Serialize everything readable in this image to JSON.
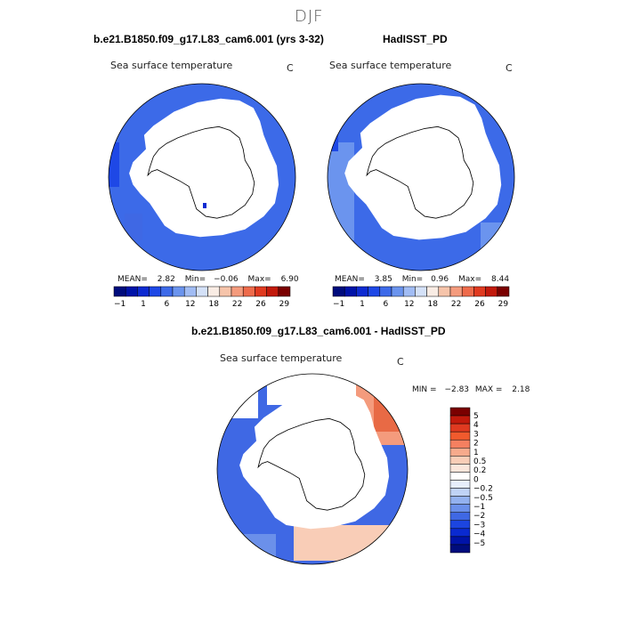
{
  "title": "DJF",
  "panels": [
    {
      "header": "b.e21.B1850.f09_g17.L83_cam6.001 (yrs 3-32)",
      "variable": "Sea surface temperature",
      "units": "C",
      "stats": {
        "mean_label": "MEAN=",
        "mean": "2.82",
        "min_label": "Min=",
        "min": "−0.06",
        "max_label": "Max=",
        "max": "6.90"
      }
    },
    {
      "header": "HadISST_PD",
      "variable": "Sea surface temperature",
      "units": "C",
      "stats": {
        "mean_label": "MEAN=",
        "mean": "3.85",
        "min_label": "Min=",
        "min": "0.96",
        "max_label": "Max=",
        "max": "8.44"
      }
    },
    {
      "header": "b.e21.B1850.f09_g17.L83_cam6.001 - HadISST_PD",
      "variable": "Sea surface temperature",
      "units": "C",
      "stats": {
        "min_label": "MIN =",
        "min": "−2.83",
        "max_label": "MAX =",
        "max": "2.18"
      }
    }
  ],
  "colorbar_abs": {
    "colors": [
      "#000c7d",
      "#0013a8",
      "#0e2bd1",
      "#1e48e6",
      "#3d6ae9",
      "#6b94ee",
      "#a1bcf4",
      "#d4e1f8",
      "#f9ece4",
      "#f6c4aa",
      "#f49b7d",
      "#ee6b4b",
      "#e03a20",
      "#c21a0c",
      "#7a0000"
    ],
    "labels": [
      "−1",
      "1",
      "6",
      "12",
      "18",
      "22",
      "26",
      "29"
    ]
  },
  "colorbar_diff": {
    "colors": [
      "#7a0000",
      "#c21a0c",
      "#e03a20",
      "#f05a2d",
      "#f58060",
      "#f7aa8c",
      "#f9cdb7",
      "#fbe6db",
      "#ffffff",
      "#e6eefb",
      "#c0d3f6",
      "#93b1ef",
      "#6b90ea",
      "#3f68e4",
      "#1c45e0",
      "#0a2ad0",
      "#0013a8",
      "#000c7d"
    ],
    "labels": [
      "5",
      "4",
      "3",
      "2",
      "1",
      "0.5",
      "0.2",
      "0",
      "−0.2",
      "−0.5",
      "−1",
      "−2",
      "−3",
      "−4",
      "−5"
    ]
  },
  "colors": {
    "ocean_model": "#3c6ae8",
    "ocean_light": "#6b94ee",
    "ocean_pale": "#a1bcf4",
    "diff_blue": "#3f68e4",
    "diff_warm": "#f49b7d",
    "diff_hot": "#e86a45",
    "land": "#ffffff"
  }
}
